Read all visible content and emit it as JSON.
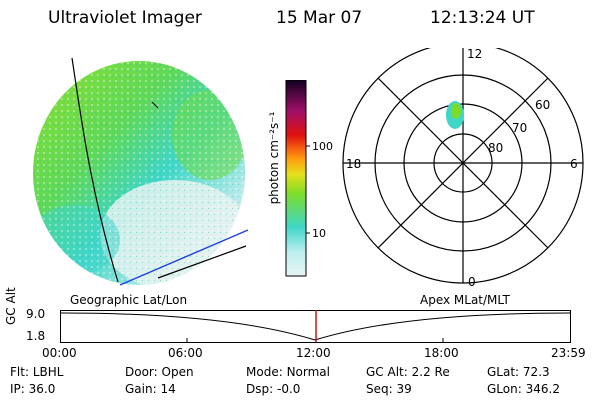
{
  "header": {
    "title": "Ultraviolet Imager",
    "date": "15 Mar 07",
    "time": "12:13:24 UT"
  },
  "colorbar": {
    "label": "photon cm⁻²s⁻¹",
    "ticks": [
      "100",
      "10"
    ]
  },
  "polar": {
    "mlt_labels": {
      "top": "12",
      "left": "18",
      "right": "6",
      "bottom": "0"
    },
    "lat_labels": [
      "60",
      "70",
      "80"
    ]
  },
  "timeline": {
    "y_axis_label": "GC Alt",
    "y_ticks": [
      "9.0",
      "1.8"
    ],
    "left_caption": "Geographic Lat/Lon",
    "right_caption": "Apex MLat/MLT",
    "x_ticks": [
      "00:00",
      "06:00",
      "12:00",
      "18:00",
      "23:59"
    ]
  },
  "info": {
    "row1": [
      {
        "k": "Flt:",
        "v": "LBHL"
      },
      {
        "k": "Door:",
        "v": "Open"
      },
      {
        "k": "Mode:",
        "v": "Normal"
      },
      {
        "k": "GC Alt:",
        "v": "2.2 Re"
      },
      {
        "k": "GLat:",
        "v": "72.3"
      }
    ],
    "row2": [
      {
        "k": "IP:",
        "v": "36.0"
      },
      {
        "k": "Gain:",
        "v": "14"
      },
      {
        "k": "Dsp:",
        "v": "-0.0"
      },
      {
        "k": "Seq:",
        "v": "39"
      },
      {
        "k": "GLon:",
        "v": "346.2"
      }
    ]
  },
  "colors": {
    "green": "#7ddc2a",
    "teal": "#3fd6c8",
    "pale": "#cdeef0",
    "blue_line": "#1f3fe0",
    "marker": "#d01010"
  }
}
